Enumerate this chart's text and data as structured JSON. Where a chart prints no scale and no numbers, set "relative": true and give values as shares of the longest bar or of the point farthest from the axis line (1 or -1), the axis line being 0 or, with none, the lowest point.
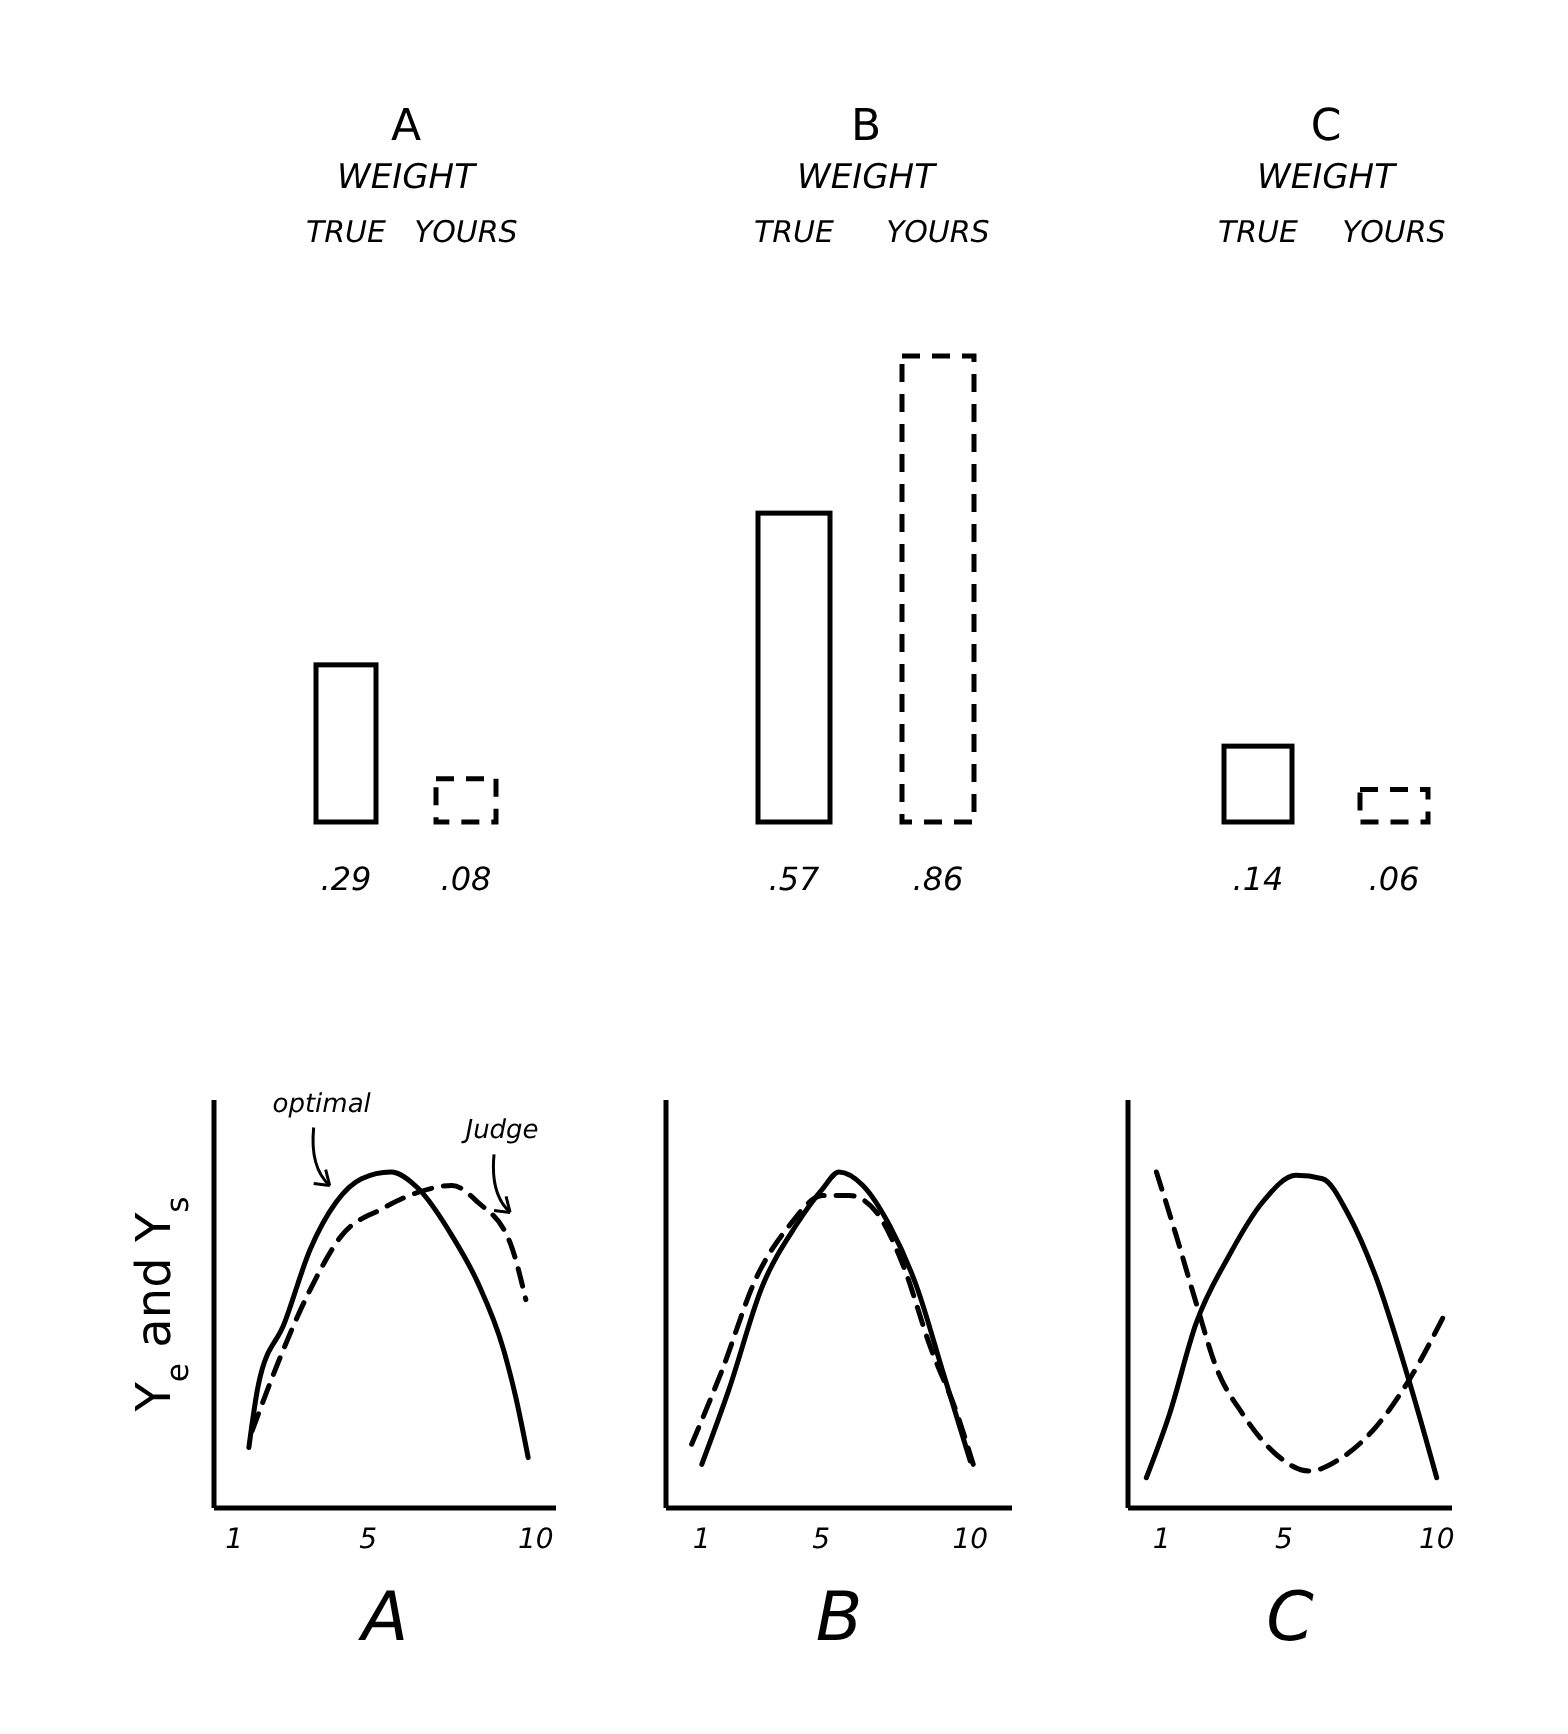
{
  "chart_data": [
    {
      "type": "bar",
      "title": "A",
      "subtitle": "WEIGHT",
      "categories": [
        "TRUE",
        "YOURS"
      ],
      "series": [
        {
          "color": "#000000",
          "line_style": "solid",
          "values": [
            0.29,
            null
          ],
          "value_labels": [
            ".29",
            null
          ]
        },
        {
          "color": "#000000",
          "line_style": "dashed",
          "values": [
            null,
            0.08
          ],
          "value_labels": [
            null,
            ".08"
          ]
        }
      ]
    },
    {
      "type": "bar",
      "title": "B",
      "subtitle": "WEIGHT",
      "categories": [
        "TRUE",
        "YOURS"
      ],
      "series": [
        {
          "color": "#000000",
          "line_style": "solid",
          "values": [
            0.57,
            null
          ],
          "value_labels": [
            ".57",
            null
          ]
        },
        {
          "color": "#000000",
          "line_style": "dashed",
          "values": [
            null,
            0.86
          ],
          "value_labels": [
            null,
            ".86"
          ]
        }
      ]
    },
    {
      "type": "bar",
      "title": "C",
      "subtitle": "WEIGHT",
      "categories": [
        "TRUE",
        "YOURS"
      ],
      "series": [
        {
          "color": "#000000",
          "line_style": "solid",
          "values": [
            0.14,
            null
          ],
          "value_labels": [
            ".14",
            null
          ]
        },
        {
          "color": "#000000",
          "line_style": "dashed",
          "values": [
            null,
            0.06
          ],
          "value_labels": [
            null,
            ".06"
          ]
        }
      ]
    },
    {
      "type": "line",
      "relative": true,
      "xlabel": "A",
      "ylabel": "Y$_{e}$ and Y$_{s}$",
      "xlim": [
        0.4,
        10.6
      ],
      "xticks": [
        1,
        5,
        10
      ],
      "annotations": [
        {
          "text": "optimal",
          "x": 3.85,
          "y": 0.93
        },
        {
          "text": "Judge",
          "x": 9.23,
          "y": 0.85
        }
      ],
      "series": [
        {
          "color": "#000000",
          "line_style": "solid",
          "x": [
            1.44,
            1.73,
            2.5,
            3.27,
            4.04,
            4.8,
            5.67,
            6.5,
            7.5,
            8.27,
            9.04,
            9.4,
            9.77
          ],
          "values": [
            0.18,
            0.37,
            0.55,
            0.77,
            0.91,
            0.98,
            1.0,
            0.95,
            0.81,
            0.67,
            0.47,
            0.33,
            0.15
          ]
        },
        {
          "color": "#000000",
          "line_style": "dashed",
          "x": [
            1.54,
            2.3,
            3.27,
            4.2,
            5.4,
            6.5,
            7.5,
            8.27,
            9.23,
            9.7
          ],
          "values": [
            0.23,
            0.43,
            0.65,
            0.81,
            0.89,
            0.94,
            0.96,
            0.91,
            0.79,
            0.62
          ]
        }
      ]
    },
    {
      "type": "line",
      "relative": true,
      "xlabel": "B",
      "xlim": [
        -0.2,
        11.4
      ],
      "xticks": [
        1,
        5,
        10
      ],
      "series": [
        {
          "color": "#000000",
          "line_style": "solid",
          "x": [
            1.0,
            1.9,
            3.03,
            4.15,
            5.05,
            5.6,
            6.4,
            7.3,
            8.2,
            9.1,
            10.0
          ],
          "values": [
            0.13,
            0.35,
            0.66,
            0.84,
            0.95,
            1.0,
            0.96,
            0.84,
            0.66,
            0.4,
            0.14
          ]
        },
        {
          "color": "#000000",
          "line_style": "dashed",
          "x": [
            0.66,
            1.68,
            2.8,
            3.93,
            5.05,
            5.95,
            6.86,
            7.76,
            8.66,
            9.56,
            10.1
          ],
          "values": [
            0.19,
            0.41,
            0.68,
            0.84,
            0.93,
            0.93,
            0.88,
            0.72,
            0.48,
            0.28,
            0.13
          ]
        }
      ]
    },
    {
      "type": "line",
      "relative": true,
      "xlabel": "C",
      "xlim": [
        -0.1,
        10.5
      ],
      "xticks": [
        1,
        5,
        10
      ],
      "series": [
        {
          "color": "#000000",
          "line_style": "solid",
          "x": [
            0.5,
            1.26,
            2.13,
            3.2,
            4.3,
            5.4,
            6.26,
            7.13,
            8.0,
            9.09,
            10.0
          ],
          "values": [
            0.09,
            0.28,
            0.55,
            0.75,
            0.91,
            0.99,
            0.98,
            0.87,
            0.69,
            0.38,
            0.09
          ]
        },
        {
          "color": "#000000",
          "line_style": "dashed",
          "x": [
            0.83,
            1.48,
            2.13,
            2.78,
            3.65,
            4.74,
            5.83,
            6.9,
            8.0,
            9.09,
            10.28
          ],
          "values": [
            1.0,
            0.81,
            0.61,
            0.42,
            0.28,
            0.16,
            0.11,
            0.15,
            0.24,
            0.38,
            0.58
          ]
        }
      ]
    }
  ]
}
